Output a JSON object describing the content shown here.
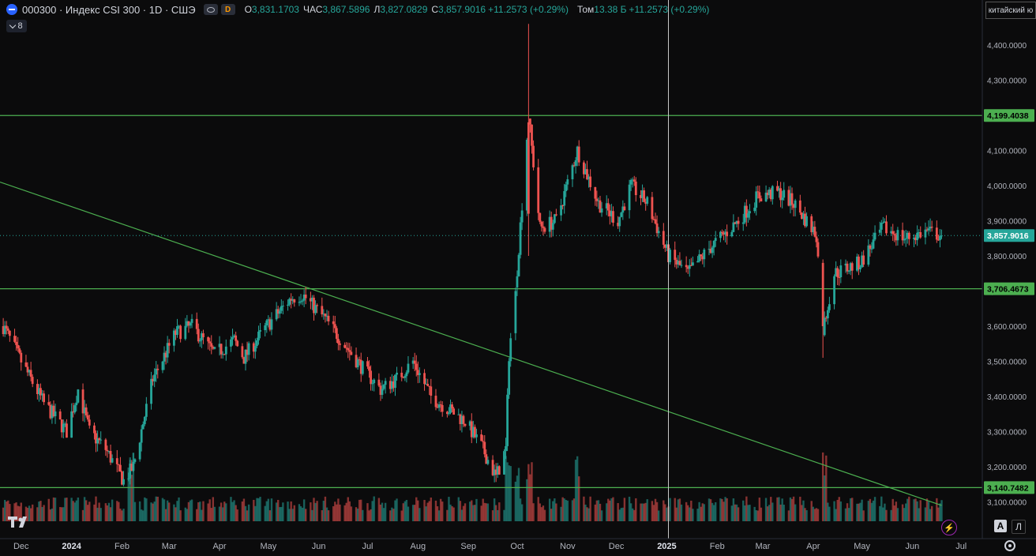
{
  "legend": {
    "title": "000300 · Индекс CSI 300 · 1D · СШЭ",
    "badge": "D",
    "o_label": "O",
    "o": "3,831.1703",
    "h_label": "ЧАС",
    "h": "3,867.5896",
    "l_label": "Л",
    "l": "3,827.0829",
    "c_label": "C",
    "c": "3,857.9016",
    "change": "+11.2573 (+0.29%)",
    "vol_label": "Том",
    "vol": "13.38 Б",
    "vol_change": "+11.2573 (+0.29%)"
  },
  "indicator_count": "8",
  "currency_label": "китайский ю",
  "buttons": {
    "auto": "A",
    "log": "Л"
  },
  "colors": {
    "up": "#26a69a",
    "down": "#ef5350",
    "level": "#4caf50",
    "crosshair": "#c8c8c8"
  },
  "chart_data": {
    "type": "candlestick",
    "y_axis": {
      "ticks": [
        3100,
        3200,
        3300,
        3400,
        3500,
        3600,
        3700,
        3800,
        3900,
        4000,
        4100,
        4200,
        4300,
        4400,
        4500
      ],
      "tick_labels": [
        "3,100.0000",
        "3,200.0000",
        "3,300.0000",
        "3,400.0000",
        "3,500.0000",
        "3,600.0000",
        "3,700.0000",
        "3,800.0000",
        "3,900.0000",
        "4,000.0000",
        "4,100.0000",
        "4,200.0000",
        "4,300.0000",
        "4,400.0000",
        "4,500.0000"
      ],
      "range": [
        3045,
        4510
      ]
    },
    "x_axis": {
      "labels": [
        "Dec",
        "2024",
        "Feb",
        "Mar",
        "Apr",
        "May",
        "Jun",
        "Jul",
        "Aug",
        "Sep",
        "Oct",
        "Nov",
        "Dec",
        "2025",
        "Feb",
        "Mar",
        "Apr",
        "May",
        "Jun",
        "Jul"
      ],
      "bold": [
        "2024",
        "2025"
      ],
      "range": [
        "2023-11-18",
        "2025-07-14"
      ]
    },
    "horizontal_levels": [
      {
        "value": 4199.4038,
        "label": "4,199.4038"
      },
      {
        "value": 3706.4673,
        "label": "3,706.4673"
      },
      {
        "value": 3140.7482,
        "label": "3,140.7482"
      }
    ],
    "current_price": {
      "value": 3857.9016,
      "label": "3,857.9016"
    },
    "trend_line": {
      "from": {
        "date": "2023-11-18",
        "value": 4010
      },
      "to": {
        "date": "2025-06-19",
        "value": 3090
      }
    },
    "crosshair_date": "2025-01-02",
    "close_path": [
      [
        "2023-11-20",
        3600
      ],
      [
        "2023-12-01",
        3500
      ],
      [
        "2023-12-15",
        3380
      ],
      [
        "2023-12-29",
        3300
      ],
      [
        "2024-01-05",
        3420
      ],
      [
        "2024-01-12",
        3300
      ],
      [
        "2024-01-22",
        3250
      ],
      [
        "2024-02-02",
        3160
      ],
      [
        "2024-02-08",
        3200
      ],
      [
        "2024-02-20",
        3450
      ],
      [
        "2024-03-05",
        3580
      ],
      [
        "2024-03-15",
        3600
      ],
      [
        "2024-03-29",
        3520
      ],
      [
        "2024-04-10",
        3560
      ],
      [
        "2024-04-16",
        3510
      ],
      [
        "2024-04-30",
        3600
      ],
      [
        "2024-05-15",
        3680
      ],
      [
        "2024-05-22",
        3690
      ],
      [
        "2024-06-05",
        3620
      ],
      [
        "2024-06-28",
        3480
      ],
      [
        "2024-07-09",
        3420
      ],
      [
        "2024-07-19",
        3450
      ],
      [
        "2024-07-29",
        3500
      ],
      [
        "2024-08-09",
        3400
      ],
      [
        "2024-08-30",
        3330
      ],
      [
        "2024-09-10",
        3250
      ],
      [
        "2024-09-18",
        3170
      ],
      [
        "2024-09-24",
        3250
      ],
      [
        "2024-09-26",
        3520
      ],
      [
        "2024-09-30",
        3700
      ],
      [
        "2024-10-08",
        4200
      ],
      [
        "2024-10-15",
        3880
      ],
      [
        "2024-10-25",
        3900
      ],
      [
        "2024-11-07",
        4100
      ],
      [
        "2024-11-20",
        3950
      ],
      [
        "2024-12-02",
        3900
      ],
      [
        "2024-12-10",
        4000
      ],
      [
        "2024-12-20",
        3950
      ],
      [
        "2025-01-02",
        3800
      ],
      [
        "2025-01-14",
        3750
      ],
      [
        "2025-01-27",
        3820
      ],
      [
        "2025-02-14",
        3900
      ],
      [
        "2025-02-26",
        3970
      ],
      [
        "2025-03-11",
        3980
      ],
      [
        "2025-03-20",
        3950
      ],
      [
        "2025-04-03",
        3860
      ],
      [
        "2025-04-07",
        3590
      ],
      [
        "2025-04-14",
        3750
      ],
      [
        "2025-04-30",
        3780
      ],
      [
        "2025-05-14",
        3880
      ],
      [
        "2025-05-28",
        3850
      ],
      [
        "2025-06-10",
        3870
      ],
      [
        "2025-06-19",
        3857.9
      ]
    ],
    "volume_spike_dates": [
      "2024-02-06",
      "2024-09-26",
      "2024-09-30",
      "2024-10-08",
      "2024-11-08",
      "2025-04-07"
    ]
  }
}
